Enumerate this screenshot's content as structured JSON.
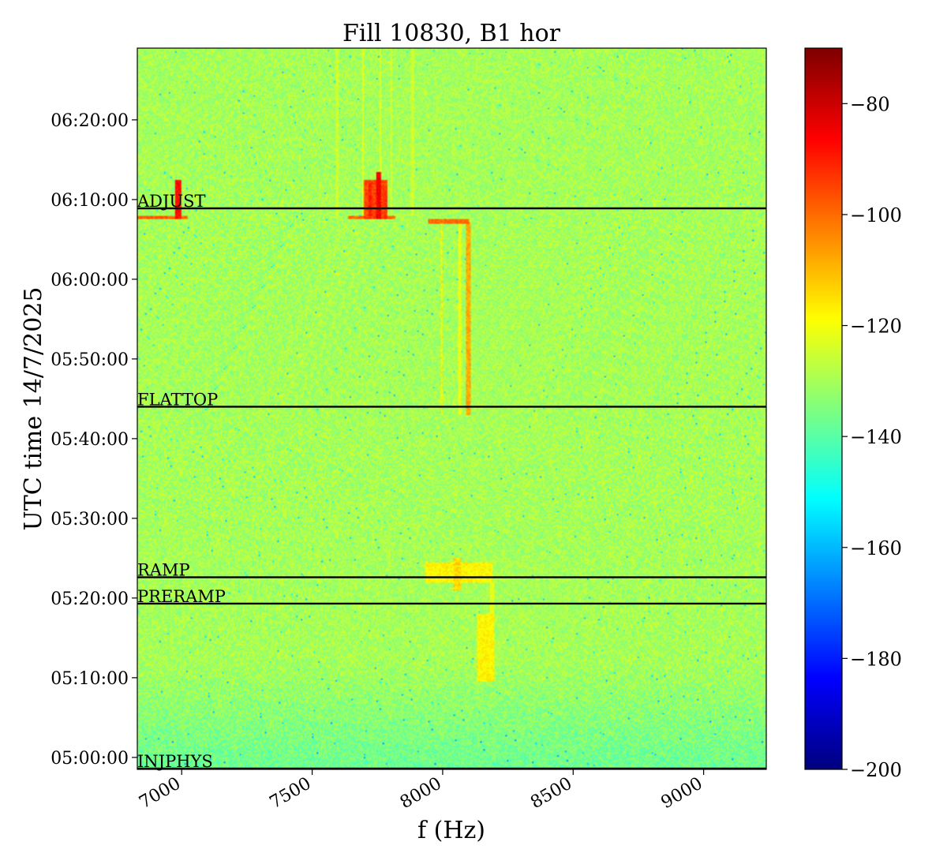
{
  "chart_data": {
    "type": "heatmap",
    "title": "Fill 10830, B1 hor",
    "xlabel": "f (Hz)",
    "ylabel": "UTC time 14/7/2025",
    "xlim": [
      6830,
      9240
    ],
    "ylim_minutes": [
      298.5,
      389.0
    ],
    "x_ticks": [
      {
        "value": 7000,
        "label": "7000"
      },
      {
        "value": 7500,
        "label": "7500"
      },
      {
        "value": 8000,
        "label": "8000"
      },
      {
        "value": 8500,
        "label": "8500"
      },
      {
        "value": 9000,
        "label": "9000"
      }
    ],
    "y_ticks": [
      {
        "value": 300,
        "label": "05:00:00"
      },
      {
        "value": 310,
        "label": "05:10:00"
      },
      {
        "value": 320,
        "label": "05:20:00"
      },
      {
        "value": 330,
        "label": "05:30:00"
      },
      {
        "value": 340,
        "label": "05:40:00"
      },
      {
        "value": 350,
        "label": "05:50:00"
      },
      {
        "value": 360,
        "label": "06:00:00"
      },
      {
        "value": 370,
        "label": "06:10:00"
      },
      {
        "value": 380,
        "label": "06:20:00"
      }
    ],
    "phases": [
      {
        "name": "INJPHYS",
        "time": 298.6
      },
      {
        "name": "PRERAMP",
        "time": 319.3
      },
      {
        "name": "RAMP",
        "time": 322.6
      },
      {
        "name": "FLATTOP",
        "time": 344.0
      },
      {
        "name": "ADJUST",
        "time": 368.9
      }
    ],
    "colorbar": {
      "range": [
        -200,
        -70
      ],
      "colormap": "jet",
      "ticks": [
        {
          "value": -80,
          "label": "−80"
        },
        {
          "value": -100,
          "label": "−100"
        },
        {
          "value": -120,
          "label": "−120"
        },
        {
          "value": -140,
          "label": "−140"
        },
        {
          "value": -160,
          "label": "−160"
        },
        {
          "value": -180,
          "label": "−180"
        },
        {
          "value": -200,
          "label": "−200"
        }
      ]
    },
    "background_level": -130,
    "features": [
      {
        "f_start": 8088,
        "f_end": 8108,
        "t_start": 343,
        "t_end": 367.2,
        "level": -108
      },
      {
        "f_start": 7990,
        "f_end": 8000,
        "t_start": 343,
        "t_end": 367,
        "level": -118
      },
      {
        "f_start": 8060,
        "f_end": 8070,
        "t_start": 343,
        "t_end": 367,
        "level": -120
      },
      {
        "f_start": 7945,
        "f_end": 8100,
        "t_start": 367.0,
        "t_end": 367.6,
        "level": -100
      },
      {
        "f_start": 7700,
        "f_end": 7790,
        "t_start": 367.6,
        "t_end": 372.5,
        "level": -95
      },
      {
        "f_start": 7745,
        "f_end": 7765,
        "t_start": 367.6,
        "t_end": 373.5,
        "level": -85
      },
      {
        "f_start": 7715,
        "f_end": 7730,
        "t_start": 367.6,
        "t_end": 372,
        "level": -90
      },
      {
        "f_start": 7775,
        "f_end": 7785,
        "t_start": 367.6,
        "t_end": 371,
        "level": -92
      },
      {
        "f_start": 6975,
        "f_end": 7000,
        "t_start": 367.6,
        "t_end": 372.5,
        "level": -88
      },
      {
        "f_start": 6830,
        "f_end": 7020,
        "t_start": 367.6,
        "t_end": 368.0,
        "level": -98
      },
      {
        "f_start": 7640,
        "f_end": 7820,
        "t_start": 367.6,
        "t_end": 368.0,
        "level": -100
      },
      {
        "f_start": 7690,
        "f_end": 7700,
        "t_start": 368,
        "t_end": 389,
        "level": -122
      },
      {
        "f_start": 7755,
        "f_end": 7765,
        "t_start": 373.5,
        "t_end": 389,
        "level": -122
      },
      {
        "f_start": 7800,
        "f_end": 7808,
        "t_start": 368,
        "t_end": 389,
        "level": -124
      },
      {
        "f_start": 7590,
        "f_end": 7600,
        "t_start": 368,
        "t_end": 389,
        "level": -125
      },
      {
        "f_start": 7880,
        "f_end": 7890,
        "t_start": 368,
        "t_end": 389,
        "level": -125
      },
      {
        "f_start": 7930,
        "f_end": 8190,
        "t_start": 322,
        "t_end": 324.5,
        "level": -118
      },
      {
        "f_start": 8040,
        "f_end": 8070,
        "t_start": 321,
        "t_end": 325,
        "level": -114
      },
      {
        "f_start": 8130,
        "f_end": 8200,
        "t_start": 309.5,
        "t_end": 318,
        "level": -118
      },
      {
        "f_start": 8180,
        "f_end": 8195,
        "t_start": 309.5,
        "t_end": 322,
        "level": -121
      }
    ]
  }
}
